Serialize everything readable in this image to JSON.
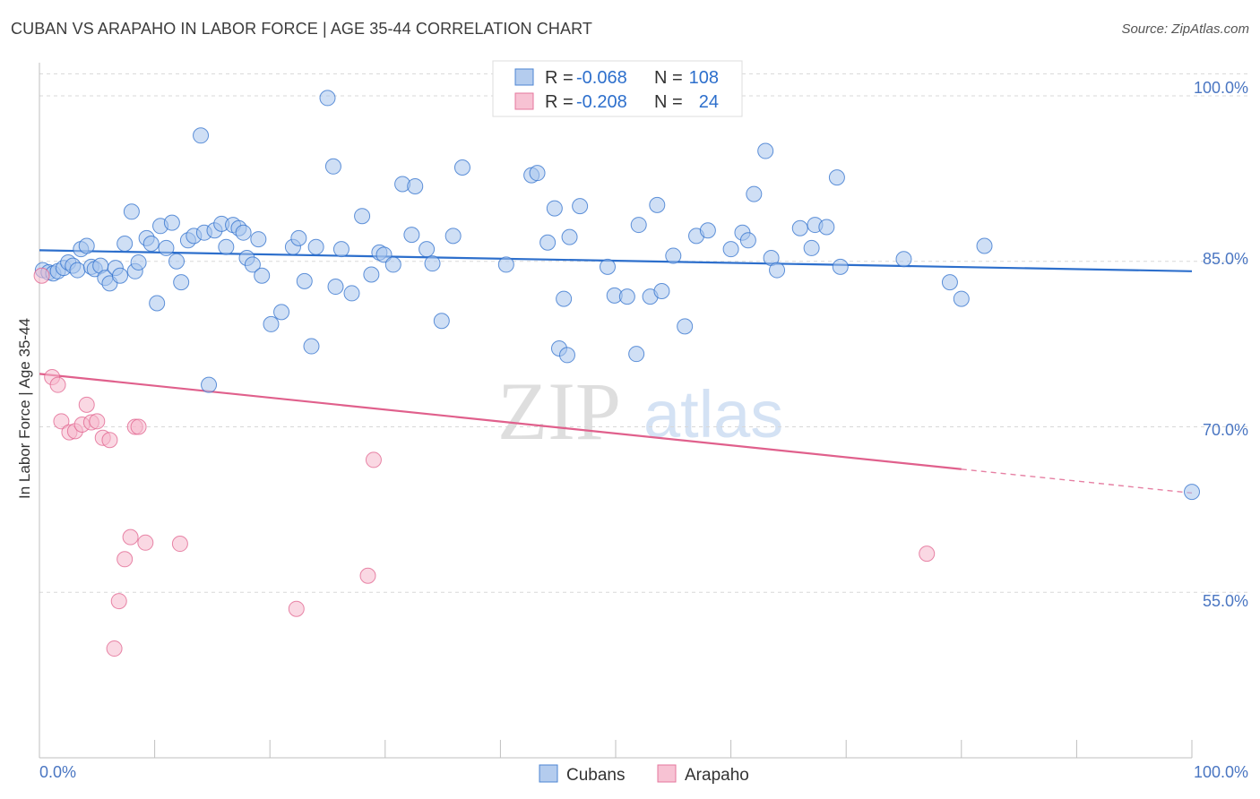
{
  "header": {
    "title": "CUBAN VS ARAPAHO IN LABOR FORCE | AGE 35-44 CORRELATION CHART",
    "source": "Source: ZipAtlas.com"
  },
  "colors": {
    "cubans": "#2d6fcc",
    "cubans_fill": "#a8c4ec",
    "arapaho": "#e0608c",
    "arapaho_fill": "#f6b8cc",
    "tick": "#4a76c2"
  },
  "legend": {
    "r_label": "R =",
    "n_label": "N =",
    "cubans_r": "-0.068",
    "cubans_n": "108",
    "arapaho_r": "-0.208",
    "arapaho_n": "24"
  },
  "watermark": {
    "zip": "ZIP",
    "atlas": "atlas"
  },
  "chart_data": {
    "type": "scatter",
    "ylabel": "In Labor Force | Age 35-44",
    "xlim": [
      0,
      100
    ],
    "ylim": [
      40,
      103
    ],
    "x_tick_labels": [
      "0.0%",
      "100.0%"
    ],
    "y_ticks": [
      55,
      70,
      85,
      100
    ],
    "y_tick_labels": [
      "55.0%",
      "70.0%",
      "85.0%",
      "100.0%"
    ],
    "grid": "dashed horizontal",
    "legend_position": "top-center",
    "series": [
      {
        "name": "Cubans",
        "trend": {
          "x": [
            0,
            100
          ],
          "y": [
            86.0,
            84.1
          ]
        },
        "points": [
          [
            0.3,
            84.2
          ],
          [
            0.8,
            84.0
          ],
          [
            1.2,
            83.9
          ],
          [
            1.6,
            84.1
          ],
          [
            2.1,
            84.4
          ],
          [
            2.5,
            84.9
          ],
          [
            2.9,
            84.6
          ],
          [
            3.3,
            84.2
          ],
          [
            3.6,
            86.1
          ],
          [
            4.1,
            86.4
          ],
          [
            4.5,
            84.5
          ],
          [
            4.8,
            84.3
          ],
          [
            5.3,
            84.6
          ],
          [
            5.7,
            83.5
          ],
          [
            6.1,
            83.0
          ],
          [
            6.6,
            84.4
          ],
          [
            7.0,
            83.7
          ],
          [
            7.4,
            86.6
          ],
          [
            8.0,
            89.5
          ],
          [
            8.3,
            84.1
          ],
          [
            8.6,
            84.9
          ],
          [
            9.3,
            87.1
          ],
          [
            9.7,
            86.6
          ],
          [
            10.2,
            81.2
          ],
          [
            10.5,
            88.2
          ],
          [
            11.0,
            86.2
          ],
          [
            11.5,
            88.5
          ],
          [
            11.9,
            85.0
          ],
          [
            12.3,
            83.1
          ],
          [
            12.9,
            86.9
          ],
          [
            13.4,
            87.3
          ],
          [
            14.0,
            96.4
          ],
          [
            14.3,
            87.6
          ],
          [
            14.7,
            73.8
          ],
          [
            15.2,
            87.8
          ],
          [
            15.8,
            88.4
          ],
          [
            16.2,
            86.3
          ],
          [
            16.8,
            88.3
          ],
          [
            17.3,
            88.0
          ],
          [
            17.7,
            87.6
          ],
          [
            18.0,
            85.3
          ],
          [
            18.5,
            84.7
          ],
          [
            19.0,
            87.0
          ],
          [
            19.3,
            83.7
          ],
          [
            20.1,
            79.3
          ],
          [
            21.0,
            80.4
          ],
          [
            22.0,
            86.3
          ],
          [
            22.5,
            87.1
          ],
          [
            23.0,
            83.2
          ],
          [
            23.6,
            77.3
          ],
          [
            24.0,
            86.3
          ],
          [
            25.0,
            99.8
          ],
          [
            25.5,
            93.6
          ],
          [
            25.7,
            82.7
          ],
          [
            26.2,
            86.1
          ],
          [
            27.1,
            82.1
          ],
          [
            28.0,
            89.1
          ],
          [
            28.8,
            83.8
          ],
          [
            29.5,
            85.8
          ],
          [
            29.9,
            85.6
          ],
          [
            30.7,
            84.7
          ],
          [
            31.5,
            92.0
          ],
          [
            32.3,
            87.4
          ],
          [
            32.6,
            91.8
          ],
          [
            33.6,
            86.1
          ],
          [
            34.1,
            84.8
          ],
          [
            34.9,
            79.6
          ],
          [
            35.9,
            87.3
          ],
          [
            36.7,
            93.5
          ],
          [
            40.5,
            84.7
          ],
          [
            42.7,
            92.8
          ],
          [
            43.2,
            93.0
          ],
          [
            44.1,
            86.7
          ],
          [
            44.7,
            89.8
          ],
          [
            45.1,
            77.1
          ],
          [
            45.5,
            81.6
          ],
          [
            45.8,
            76.5
          ],
          [
            46.0,
            87.2
          ],
          [
            46.9,
            90.0
          ],
          [
            49.3,
            84.5
          ],
          [
            49.9,
            81.9
          ],
          [
            51.0,
            81.8
          ],
          [
            51.8,
            76.6
          ],
          [
            52.0,
            88.3
          ],
          [
            53.0,
            81.8
          ],
          [
            53.6,
            90.1
          ],
          [
            54.0,
            82.3
          ],
          [
            55.0,
            85.5
          ],
          [
            56.0,
            79.1
          ],
          [
            57.0,
            87.3
          ],
          [
            58.0,
            87.8
          ],
          [
            60.0,
            86.1
          ],
          [
            61.0,
            87.6
          ],
          [
            61.5,
            86.9
          ],
          [
            62.0,
            91.1
          ],
          [
            63.0,
            95.0
          ],
          [
            63.5,
            85.3
          ],
          [
            64.0,
            84.2
          ],
          [
            66.0,
            88.0
          ],
          [
            67.0,
            86.2
          ],
          [
            67.3,
            88.3
          ],
          [
            68.3,
            88.1
          ],
          [
            69.2,
            92.6
          ],
          [
            69.5,
            84.5
          ],
          [
            75.0,
            85.2
          ],
          [
            79.0,
            83.1
          ],
          [
            80.0,
            81.6
          ],
          [
            82.0,
            86.4
          ],
          [
            100.0,
            64.1
          ]
        ]
      },
      {
        "name": "Arapaho",
        "trend": {
          "x": [
            0,
            100
          ],
          "y": [
            74.8,
            64.0
          ]
        },
        "trend_solid_to_x": 80,
        "points": [
          [
            0.2,
            83.7
          ],
          [
            1.1,
            74.5
          ],
          [
            1.6,
            73.8
          ],
          [
            1.9,
            70.5
          ],
          [
            2.6,
            69.5
          ],
          [
            3.1,
            69.6
          ],
          [
            3.7,
            70.2
          ],
          [
            4.1,
            72.0
          ],
          [
            4.5,
            70.4
          ],
          [
            5.0,
            70.5
          ],
          [
            5.5,
            69.0
          ],
          [
            6.1,
            68.8
          ],
          [
            6.5,
            49.9
          ],
          [
            6.9,
            54.2
          ],
          [
            7.4,
            58.0
          ],
          [
            7.9,
            60.0
          ],
          [
            8.3,
            70.0
          ],
          [
            8.6,
            70.0
          ],
          [
            9.2,
            59.5
          ],
          [
            12.2,
            59.4
          ],
          [
            22.3,
            53.5
          ],
          [
            28.5,
            56.5
          ],
          [
            29.0,
            67.0
          ],
          [
            77.0,
            58.5
          ]
        ]
      }
    ]
  },
  "bottom_legend": {
    "cubans": "Cubans",
    "arapaho": "Arapaho"
  }
}
